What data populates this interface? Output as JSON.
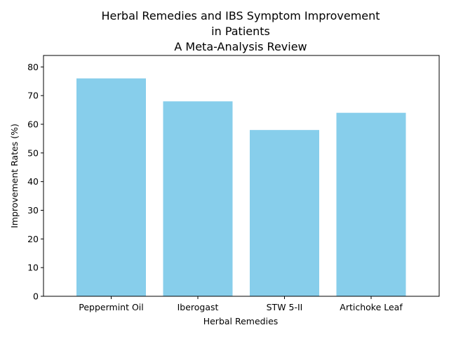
{
  "chart_data": {
    "type": "bar",
    "title_lines": [
      "Herbal Remedies and IBS Symptom Improvement",
      "in Patients",
      "A Meta-Analysis Review"
    ],
    "xlabel": "Herbal Remedies",
    "ylabel": "Improvement Rates (%)",
    "categories": [
      "Peppermint Oil",
      "Iberogast",
      "STW 5-II",
      "Artichoke Leaf"
    ],
    "values": [
      76,
      68,
      58,
      64
    ],
    "ylim": [
      0,
      84
    ],
    "yticks": [
      0,
      10,
      20,
      30,
      40,
      50,
      60,
      70,
      80
    ],
    "bar_color": "#87ceeb",
    "grid": false,
    "legend": "none"
  }
}
